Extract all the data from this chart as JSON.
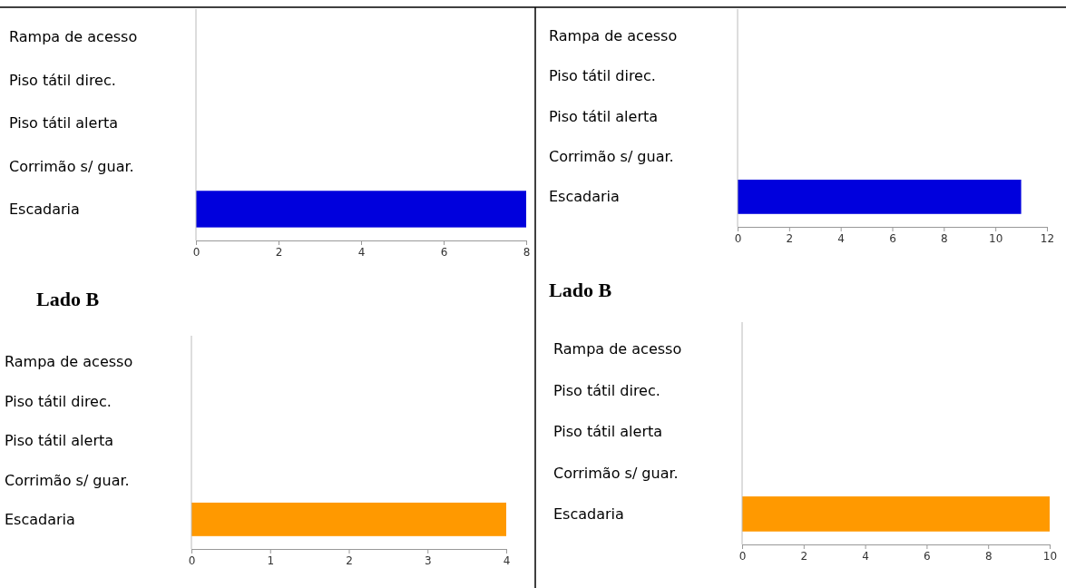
{
  "chart_data": [
    {
      "type": "bar",
      "orientation": "horizontal",
      "categories": [
        "Rampa de acesso",
        "Piso tátil direc.",
        "Piso tátil alerta",
        "Corrimão s/ guar.",
        "Escadaria"
      ],
      "values": [
        0,
        0,
        0,
        0,
        8
      ],
      "color": "#0000dd",
      "xlim": [
        0,
        8
      ],
      "xticks": [
        0,
        2,
        4,
        6,
        8
      ],
      "grid": false
    },
    {
      "type": "bar",
      "orientation": "horizontal",
      "categories": [
        "Rampa de acesso",
        "Piso tátil direc.",
        "Piso tátil alerta",
        "Corrimão s/ guar.",
        "Escadaria"
      ],
      "values": [
        0,
        0,
        0,
        0,
        11
      ],
      "color": "#0000dd",
      "xlim": [
        0,
        12
      ],
      "xticks": [
        0,
        2,
        4,
        6,
        8,
        10,
        12
      ],
      "grid": false
    },
    {
      "type": "bar",
      "orientation": "horizontal",
      "title": "Lado B",
      "categories": [
        "Rampa de acesso",
        "Piso tátil direc.",
        "Piso tátil alerta",
        "Corrimão s/ guar.",
        "Escadaria"
      ],
      "values": [
        0,
        0,
        0,
        0,
        4
      ],
      "color": "#ff9900",
      "xlim": [
        0,
        4
      ],
      "xticks": [
        0,
        1,
        2,
        3,
        4
      ],
      "grid": false
    },
    {
      "type": "bar",
      "orientation": "horizontal",
      "title": "Lado B",
      "categories": [
        "Rampa de acesso",
        "Piso tátil direc.",
        "Piso tátil alerta",
        "Corrimão s/ guar.",
        "Escadaria"
      ],
      "values": [
        0,
        0,
        0,
        0,
        10
      ],
      "color": "#ff9900",
      "xlim": [
        0,
        10
      ],
      "xticks": [
        0,
        2,
        4,
        6,
        8,
        10
      ],
      "grid": false
    }
  ]
}
